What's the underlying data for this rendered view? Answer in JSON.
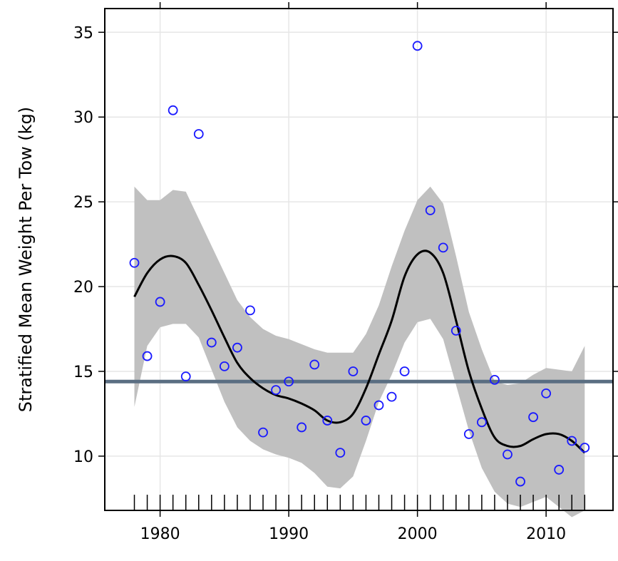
{
  "chart_data": {
    "type": "scatter",
    "title": "",
    "xlabel": "",
    "ylabel": "Stratified Mean Weight Per Tow (kg)",
    "xlim": [
      1975.7,
      2015.2
    ],
    "ylim": [
      6.8,
      36.4
    ],
    "x_ticks": [
      1980,
      1990,
      2000,
      2010
    ],
    "y_ticks": [
      10,
      15,
      20,
      25,
      30,
      35
    ],
    "grid": true,
    "points": {
      "x": [
        1978,
        1979,
        1980,
        1981,
        1982,
        1983,
        1984,
        1985,
        1986,
        1987,
        1988,
        1989,
        1990,
        1991,
        1992,
        1993,
        1994,
        1995,
        1996,
        1997,
        1998,
        1999,
        2000,
        2001,
        2002,
        2003,
        2004,
        2005,
        2006,
        2007,
        2008,
        2009,
        2010,
        2011,
        2012,
        2013
      ],
      "y": [
        21.4,
        15.9,
        19.1,
        30.4,
        14.7,
        29.0,
        16.7,
        15.3,
        16.4,
        18.6,
        11.4,
        13.9,
        14.4,
        11.7,
        15.4,
        12.1,
        10.2,
        15.0,
        12.1,
        13.0,
        13.5,
        15.0,
        34.2,
        24.5,
        22.3,
        17.4,
        11.3,
        12.0,
        14.5,
        10.1,
        8.5,
        12.3,
        13.7,
        9.2,
        10.9,
        10.5
      ],
      "color": "#1a1aff"
    },
    "smooth": {
      "x": [
        1978,
        1979,
        1980,
        1981,
        1982,
        1983,
        1984,
        1985,
        1986,
        1987,
        1988,
        1989,
        1990,
        1991,
        1992,
        1993,
        1994,
        1995,
        1996,
        1997,
        1998,
        1999,
        2000,
        2001,
        2002,
        2003,
        2004,
        2005,
        2006,
        2007,
        2008,
        2009,
        2010,
        2011,
        2012,
        2013
      ],
      "y": [
        19.4,
        20.8,
        21.6,
        21.8,
        21.4,
        20.1,
        18.6,
        17.0,
        15.5,
        14.6,
        14.0,
        13.6,
        13.4,
        13.1,
        12.7,
        12.1,
        12.0,
        12.5,
        14.0,
        16.0,
        18.0,
        20.6,
        21.9,
        22.0,
        20.8,
        18.0,
        15.0,
        12.8,
        11.1,
        10.6,
        10.6,
        11.0,
        11.3,
        11.3,
        10.9,
        10.2
      ],
      "color": "#000000"
    },
    "band": {
      "x": [
        1978,
        1979,
        1980,
        1981,
        1982,
        1983,
        1984,
        1985,
        1986,
        1987,
        1988,
        1989,
        1990,
        1991,
        1992,
        1993,
        1994,
        1995,
        1996,
        1997,
        1998,
        1999,
        2000,
        2001,
        2002,
        2003,
        2004,
        2005,
        2006,
        2007,
        2008,
        2009,
        2010,
        2011,
        2012,
        2013
      ],
      "lower": [
        12.9,
        16.5,
        17.6,
        17.8,
        17.8,
        17.0,
        15.1,
        13.2,
        11.7,
        10.9,
        10.4,
        10.1,
        9.9,
        9.6,
        9.0,
        8.2,
        8.1,
        8.8,
        10.9,
        13.2,
        14.8,
        16.7,
        17.9,
        18.1,
        16.9,
        14.2,
        11.5,
        9.3,
        7.9,
        7.2,
        7.0,
        7.3,
        7.6,
        7.0,
        6.4,
        6.8
      ],
      "upper": [
        25.9,
        25.1,
        25.1,
        25.7,
        25.6,
        24.0,
        22.4,
        20.8,
        19.2,
        18.2,
        17.5,
        17.1,
        16.9,
        16.6,
        16.3,
        16.1,
        16.1,
        16.1,
        17.2,
        18.9,
        21.2,
        23.3,
        25.1,
        25.9,
        24.9,
        21.8,
        18.5,
        16.3,
        14.4,
        14.2,
        14.3,
        14.8,
        15.2,
        15.1,
        15.0,
        16.5
      ],
      "color": "#c0c0c0"
    },
    "reference_line": {
      "y": 14.4,
      "color": "#5a6e82"
    },
    "rug_x": [
      1978,
      1979,
      1980,
      1981,
      1982,
      1983,
      1984,
      1985,
      1986,
      1987,
      1988,
      1989,
      1990,
      1991,
      1992,
      1993,
      1994,
      1995,
      1996,
      1997,
      1998,
      1999,
      2000,
      2001,
      2002,
      2003,
      2004,
      2005,
      2006,
      2007,
      2008,
      2009,
      2010,
      2011,
      2012,
      2013
    ]
  }
}
